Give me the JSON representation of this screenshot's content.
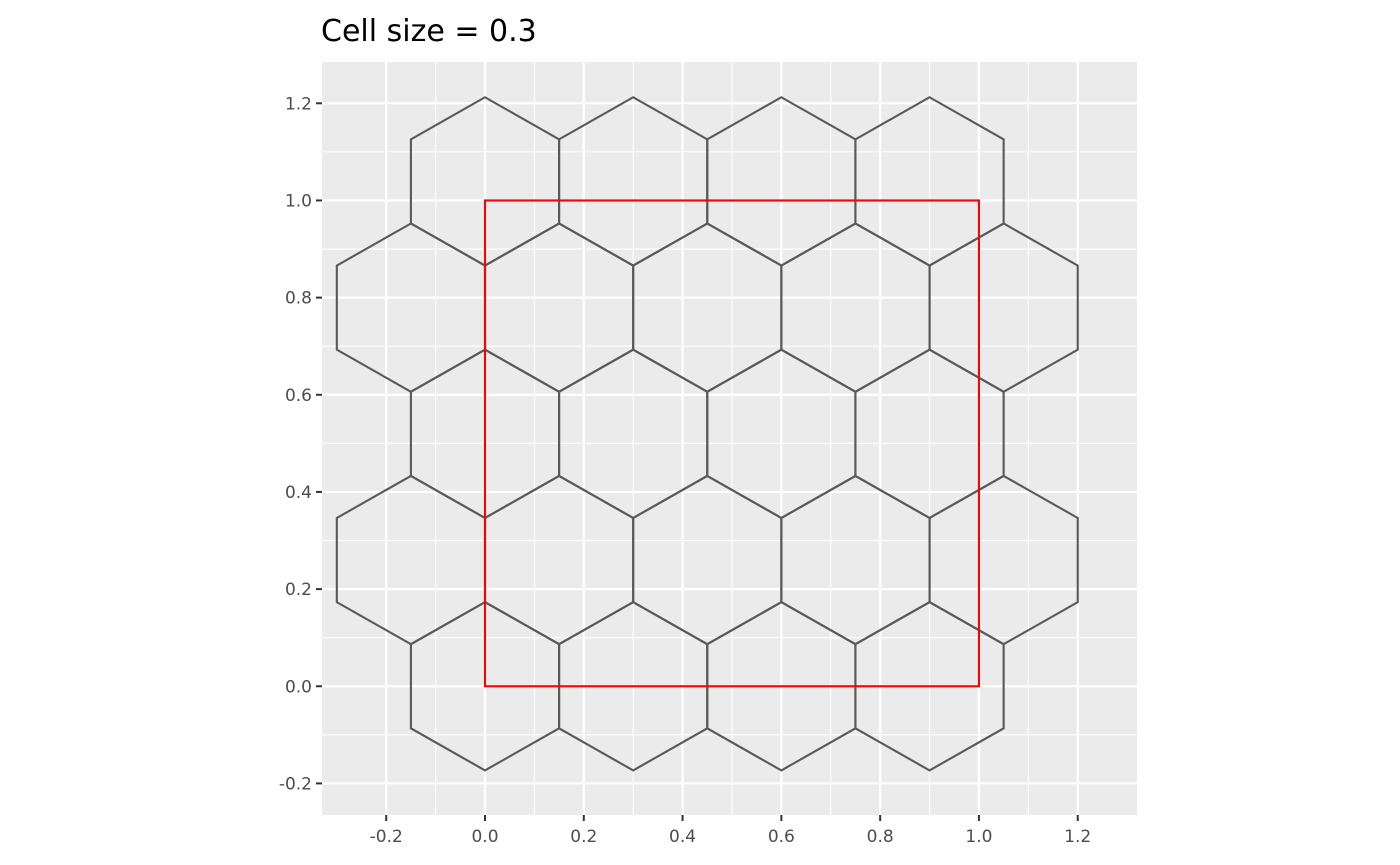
{
  "chart_data": {
    "type": "polygon",
    "title": "Cell size = 0.3",
    "xlabel": "",
    "ylabel": "",
    "xlim": [
      -0.33,
      1.32
    ],
    "ylim": [
      -0.265,
      1.285
    ],
    "aspect": "equal",
    "grid": true,
    "background": "#ebebeb",
    "grid_color": "#ffffff",
    "x_ticks": [
      -0.2,
      0.0,
      0.2,
      0.4,
      0.6,
      0.8,
      1.0,
      1.2
    ],
    "x_tick_labels": [
      "-0.2",
      "0.0",
      "0.2",
      "0.4",
      "0.6",
      "0.8",
      "1.0",
      "1.2"
    ],
    "y_ticks": [
      -0.2,
      0.0,
      0.2,
      0.4,
      0.6,
      0.8,
      1.0,
      1.2
    ],
    "y_tick_labels": [
      "-0.2",
      "0.0",
      "0.2",
      "0.4",
      "0.6",
      "0.8",
      "1.0",
      "1.2"
    ],
    "hexagon_grid": {
      "cell_size": 0.3,
      "orientation": "pointy-top",
      "color": "#595959",
      "centers": [
        [
          0.0,
          0.0
        ],
        [
          0.3,
          0.0
        ],
        [
          0.6,
          0.0
        ],
        [
          0.9,
          0.0
        ],
        [
          -0.15,
          0.2598
        ],
        [
          0.15,
          0.2598
        ],
        [
          0.45,
          0.2598
        ],
        [
          0.75,
          0.2598
        ],
        [
          1.05,
          0.2598
        ],
        [
          0.0,
          0.5196
        ],
        [
          0.3,
          0.5196
        ],
        [
          0.6,
          0.5196
        ],
        [
          0.9,
          0.5196
        ],
        [
          -0.15,
          0.7794
        ],
        [
          0.15,
          0.7794
        ],
        [
          0.45,
          0.7794
        ],
        [
          0.75,
          0.7794
        ],
        [
          1.05,
          0.7794
        ],
        [
          0.0,
          1.0392
        ],
        [
          0.3,
          1.0392
        ],
        [
          0.6,
          1.0392
        ],
        [
          0.9,
          1.0392
        ]
      ]
    },
    "rectangle": {
      "xmin": 0.0,
      "ymin": 0.0,
      "xmax": 1.0,
      "ymax": 1.0,
      "color": "#ff0000"
    }
  }
}
